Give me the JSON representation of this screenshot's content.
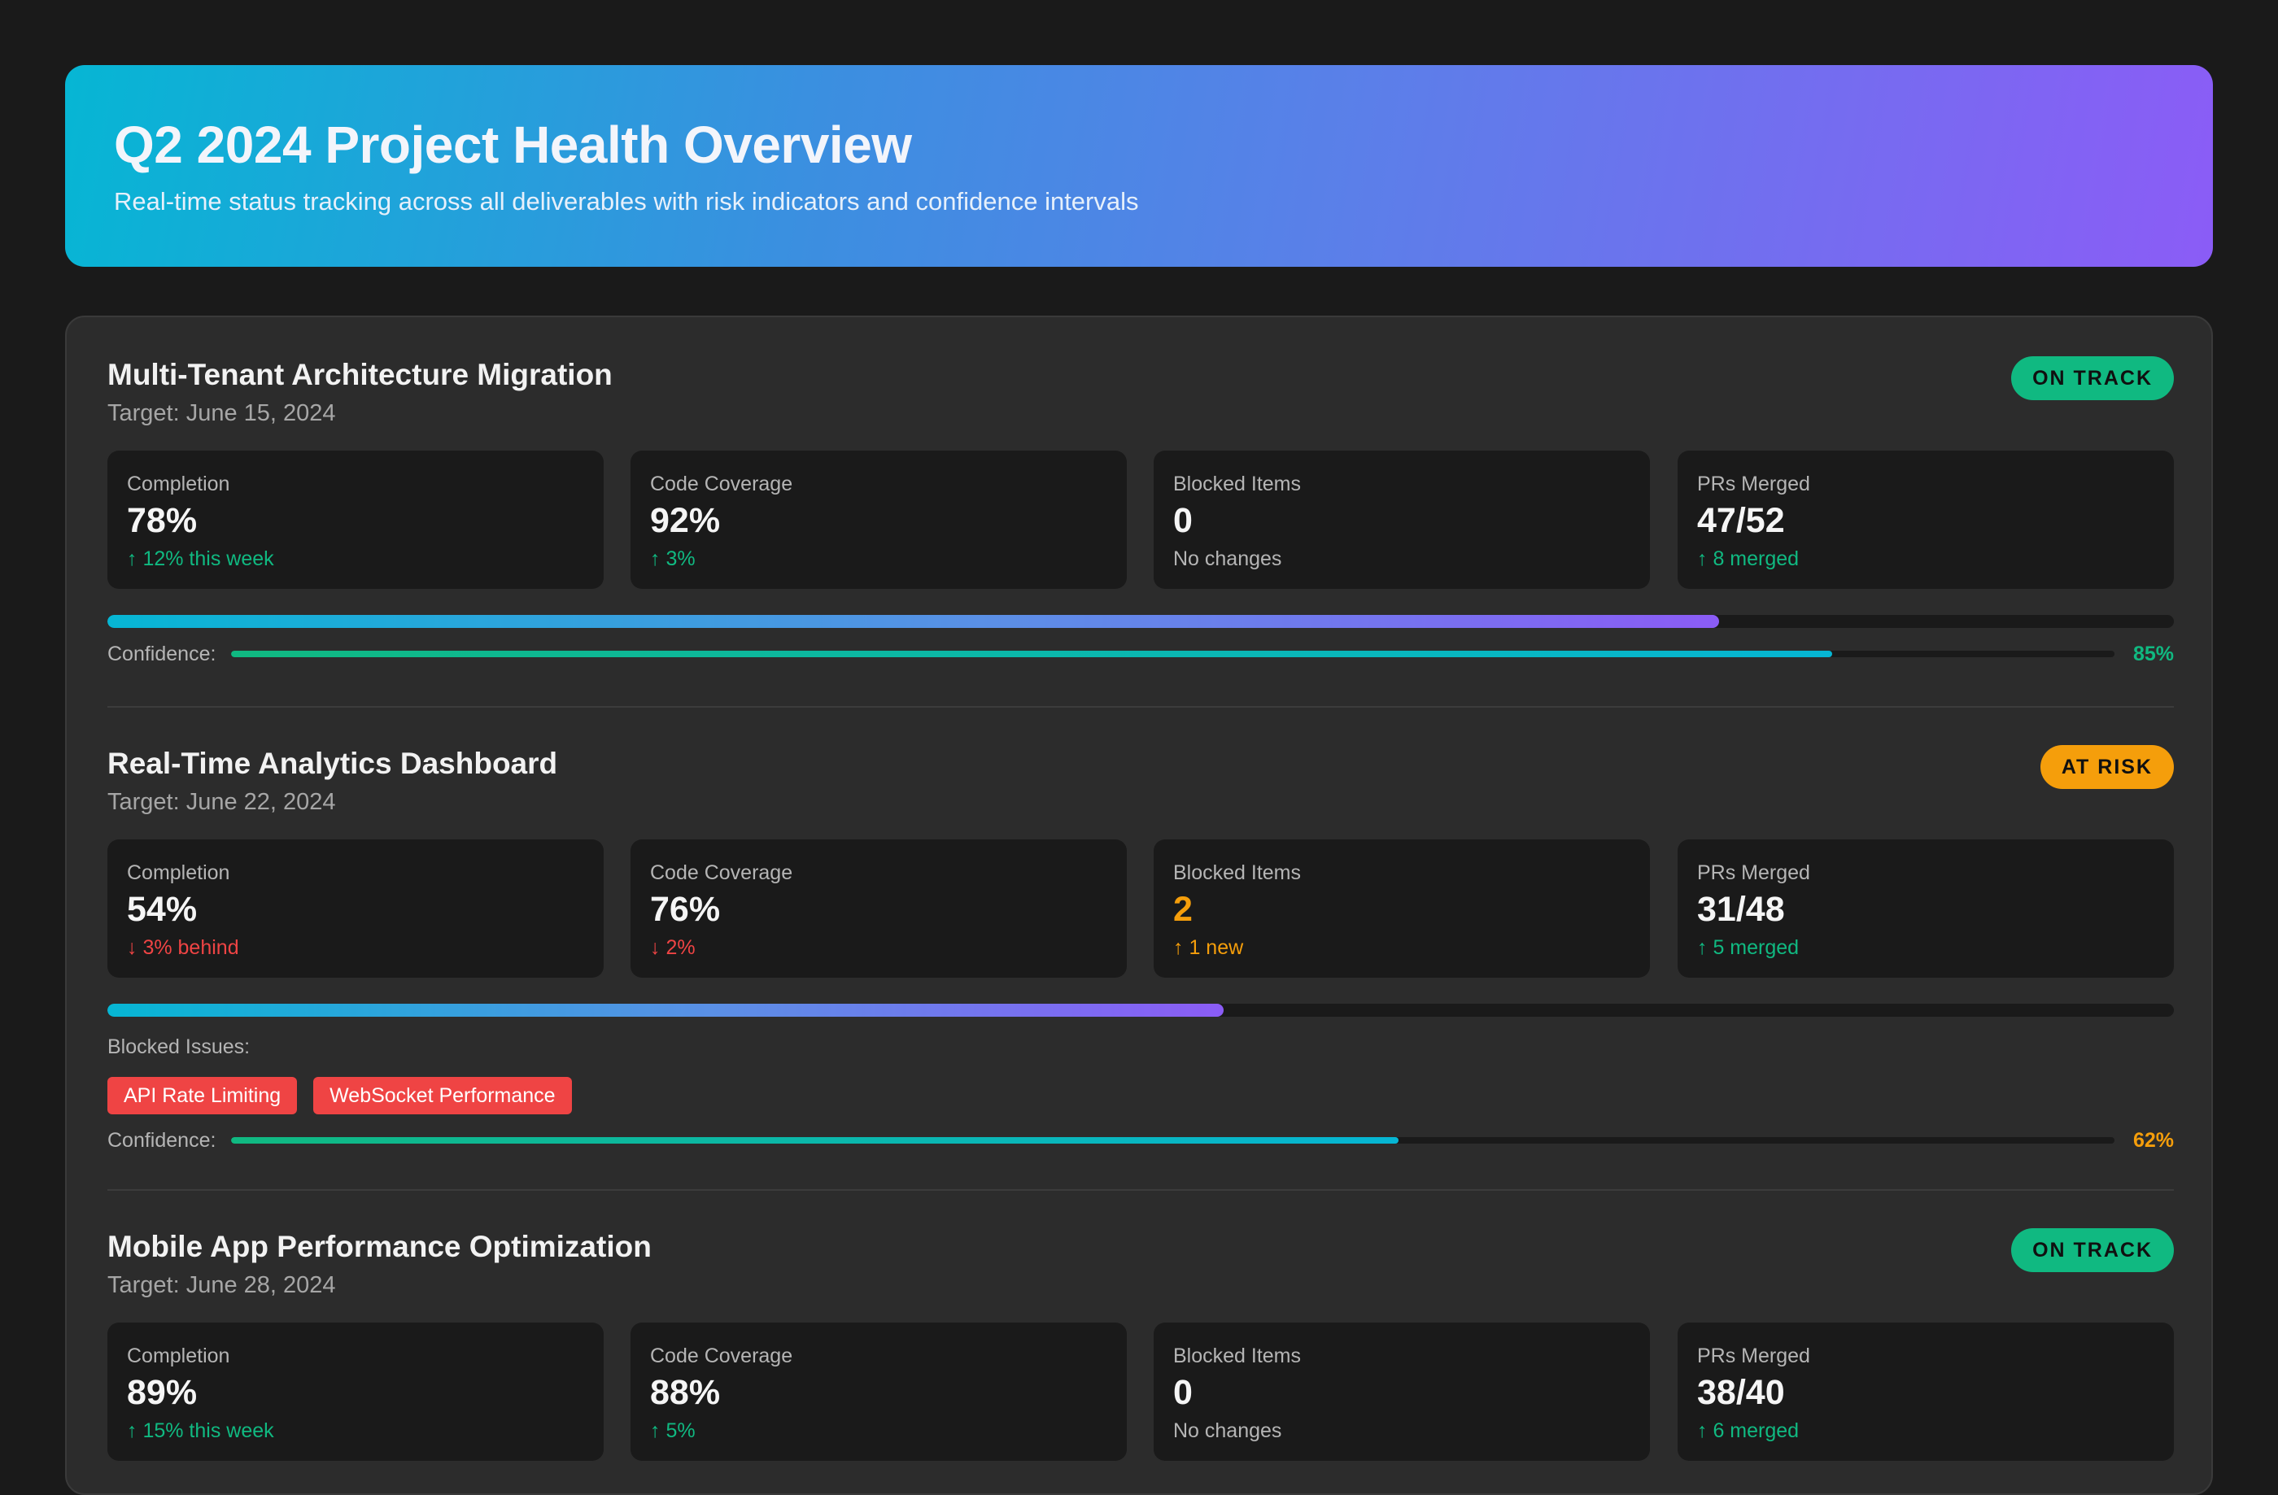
{
  "header": {
    "title": "Q2 2024 Project Health Overview",
    "subtitle": "Real-time status tracking across all deliverables with risk indicators and confidence intervals"
  },
  "colors": {
    "on_track": "#10b981",
    "at_risk": "#f59e0b",
    "negative": "#ef4444",
    "accent_start": "#06b6d4",
    "accent_end": "#8b5cf6"
  },
  "projects": [
    {
      "title": "Multi-Tenant Architecture Migration",
      "target": "Target: June 15, 2024",
      "status": "ON TRACK",
      "metrics": [
        {
          "label": "Completion",
          "value": "78%",
          "delta": "↑ 12% this week"
        },
        {
          "label": "Code Coverage",
          "value": "92%",
          "delta": "↑ 3%"
        },
        {
          "label": "Blocked Items",
          "value": "0",
          "delta": "No changes"
        },
        {
          "label": "PRs Merged",
          "value": "47/52",
          "delta": "↑ 8 merged"
        }
      ],
      "progress_percent": 78,
      "confidence_label": "Confidence:",
      "confidence": "85%",
      "confidence_percent": 85
    },
    {
      "title": "Real-Time Analytics Dashboard",
      "target": "Target: June 22, 2024",
      "status": "AT RISK",
      "metrics": [
        {
          "label": "Completion",
          "value": "54%",
          "delta": "↓ 3% behind"
        },
        {
          "label": "Code Coverage",
          "value": "76%",
          "delta": "↓ 2%"
        },
        {
          "label": "Blocked Items",
          "value": "2",
          "delta": "↑ 1 new"
        },
        {
          "label": "PRs Merged",
          "value": "31/48",
          "delta": "↑ 5 merged"
        }
      ],
      "progress_percent": 54,
      "blocked_issues_label": "Blocked Issues:",
      "blocked_issues": [
        "API Rate Limiting",
        "WebSocket Performance"
      ],
      "confidence_label": "Confidence:",
      "confidence": "62%",
      "confidence_percent": 62
    },
    {
      "title": "Mobile App Performance Optimization",
      "target": "Target: June 28, 2024",
      "status": "ON TRACK",
      "metrics": [
        {
          "label": "Completion",
          "value": "89%",
          "delta": "↑ 15% this week"
        },
        {
          "label": "Code Coverage",
          "value": "88%",
          "delta": "↑ 5%"
        },
        {
          "label": "Blocked Items",
          "value": "0",
          "delta": "No changes"
        },
        {
          "label": "PRs Merged",
          "value": "38/40",
          "delta": "↑ 6 merged"
        }
      ]
    }
  ]
}
